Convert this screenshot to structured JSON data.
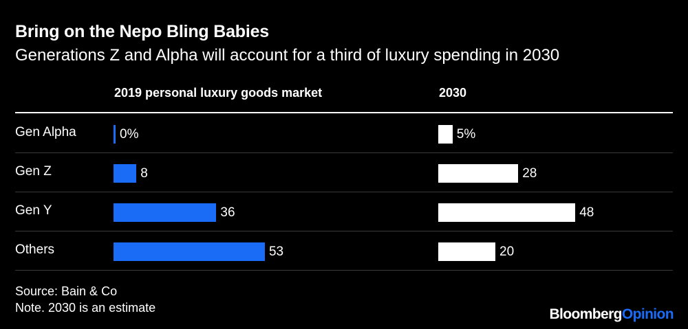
{
  "header": {
    "title": "Bring on the Nepo Bling Babies",
    "subtitle": "Generations Z and Alpha will account for a third of luxury spending in 2030"
  },
  "footer": {
    "source": "Source: Bain & Co",
    "note": "Note. 2030 is an estimate",
    "logo_part1": "Bloomberg",
    "logo_part2": "Opinion"
  },
  "colors": {
    "background": "#000000",
    "series_2019": "#1a6cf7",
    "series_2030": "#ffffff",
    "logo_accent": "#1a6cf7"
  },
  "chart_data": {
    "type": "bar",
    "orientation": "horizontal",
    "unit": "%",
    "categories": [
      "Gen Alpha",
      "Gen Z",
      "Gen Y",
      "Others"
    ],
    "series": [
      {
        "name": "2019 personal luxury goods market",
        "values": [
          0,
          8,
          36,
          53
        ],
        "labels": [
          "0%",
          "8",
          "36",
          "53"
        ]
      },
      {
        "name": "2030",
        "values": [
          5,
          28,
          48,
          20
        ],
        "labels": [
          "5%",
          "28",
          "48",
          "20"
        ]
      }
    ],
    "xlim": [
      0,
      100
    ],
    "grid": false,
    "legend": "column headers"
  }
}
